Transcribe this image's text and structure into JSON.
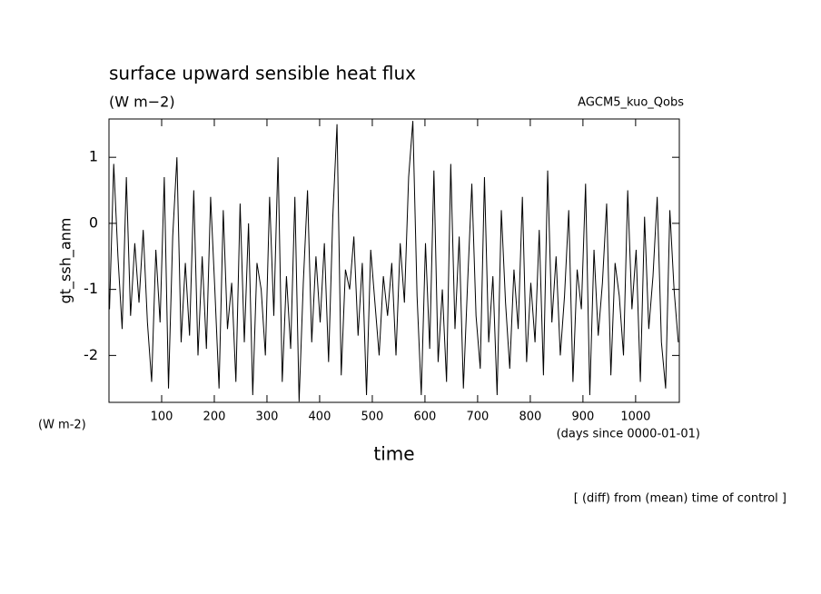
{
  "chart_data": {
    "type": "line",
    "title": "surface upward sensible heat flux",
    "subtitle": "(W m−2)",
    "annotation_right": "AGCM5_kuo_Qobs",
    "ylabel": "gt_ssh_anm",
    "xlabel": "time",
    "y_units": "(W m-2)",
    "x_units": "(days since 0000-01-01)",
    "footnote": "[ (diff) from (mean) time of control ]",
    "xlim": [
      0,
      1083
    ],
    "ylim": [
      -2.71,
      1.58
    ],
    "xticks": [
      100,
      200,
      300,
      400,
      500,
      600,
      700,
      800,
      900,
      1000
    ],
    "yticks": [
      1,
      0,
      -1,
      -2
    ],
    "x": [
      1,
      9,
      17,
      25,
      33,
      41,
      49,
      57,
      65,
      73,
      81,
      89,
      97,
      105,
      113,
      121,
      129,
      137,
      145,
      153,
      161,
      169,
      177,
      185,
      193,
      201,
      209,
      217,
      225,
      233,
      241,
      249,
      257,
      265,
      273,
      281,
      289,
      297,
      305,
      313,
      321,
      329,
      337,
      345,
      353,
      361,
      369,
      377,
      385,
      393,
      401,
      409,
      417,
      425,
      433,
      441,
      449,
      457,
      465,
      473,
      481,
      489,
      497,
      505,
      513,
      521,
      529,
      537,
      545,
      553,
      561,
      569,
      577,
      585,
      593,
      601,
      609,
      617,
      625,
      633,
      641,
      649,
      657,
      665,
      673,
      681,
      689,
      697,
      705,
      713,
      721,
      729,
      737,
      745,
      753,
      761,
      769,
      777,
      785,
      793,
      801,
      809,
      817,
      825,
      833,
      841,
      849,
      857,
      865,
      873,
      881,
      889,
      897,
      905,
      913,
      921,
      929,
      937,
      945,
      953,
      961,
      969,
      977,
      985,
      993,
      1001,
      1009,
      1017,
      1025,
      1033,
      1041,
      1049,
      1057,
      1065,
      1073,
      1081
    ],
    "series": [
      {
        "color": "#000000",
        "values": [
          -1.3,
          0.9,
          -0.5,
          -1.6,
          0.7,
          -1.4,
          -0.3,
          -1.2,
          -0.1,
          -1.5,
          -2.4,
          -0.4,
          -1.5,
          0.7,
          -2.5,
          -0.2,
          1.0,
          -1.8,
          -0.6,
          -1.7,
          0.5,
          -2.0,
          -0.5,
          -1.9,
          0.4,
          -1.0,
          -2.5,
          0.2,
          -1.6,
          -0.9,
          -2.4,
          0.3,
          -1.8,
          0.0,
          -2.6,
          -0.6,
          -1.0,
          -2.0,
          0.4,
          -1.4,
          1.0,
          -2.4,
          -0.8,
          -1.9,
          0.4,
          -2.7,
          -0.9,
          0.5,
          -1.8,
          -0.5,
          -1.5,
          -0.3,
          -2.1,
          0.1,
          1.5,
          -2.3,
          -0.7,
          -1.0,
          -0.2,
          -1.7,
          -0.6,
          -2.6,
          -0.4,
          -1.2,
          -2.0,
          -0.8,
          -1.4,
          -0.6,
          -2.0,
          -0.3,
          -1.2,
          0.7,
          1.55,
          -1.1,
          -2.6,
          -0.3,
          -1.9,
          0.8,
          -2.1,
          -1.0,
          -2.4,
          0.9,
          -1.6,
          -0.2,
          -2.5,
          -0.9,
          0.6,
          -1.4,
          -2.2,
          0.7,
          -1.8,
          -0.8,
          -2.6,
          0.2,
          -1.2,
          -2.2,
          -0.7,
          -1.6,
          0.4,
          -2.1,
          -0.9,
          -1.8,
          -0.1,
          -2.3,
          0.8,
          -1.5,
          -0.5,
          -2.0,
          -1.1,
          0.2,
          -2.4,
          -0.7,
          -1.3,
          0.6,
          -2.6,
          -0.4,
          -1.7,
          -0.9,
          0.3,
          -2.3,
          -0.6,
          -1.1,
          -2.0,
          0.5,
          -1.3,
          -0.4,
          -2.4,
          0.1,
          -1.6,
          -0.8,
          0.4,
          -1.8,
          -2.5,
          0.2,
          -1.0,
          -1.8
        ]
      }
    ]
  }
}
